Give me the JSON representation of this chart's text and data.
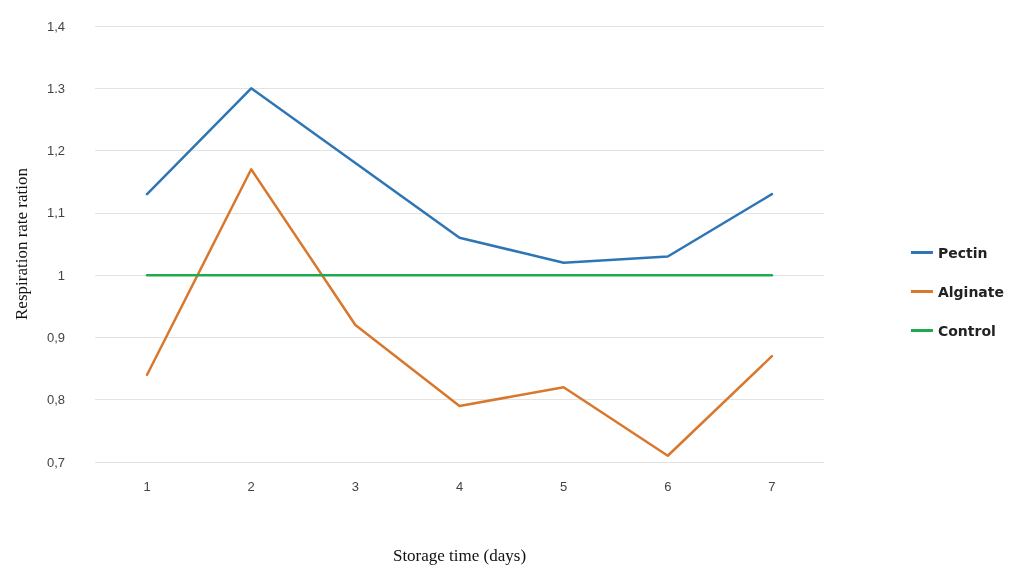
{
  "chart_data": {
    "type": "line",
    "xlabel": "Storage time (days)",
    "ylabel": "Respiration rate ration",
    "categories": [
      "1",
      "2",
      "3",
      "4",
      "5",
      "6",
      "7"
    ],
    "series": [
      {
        "name": "Pectin",
        "color": "#2e75b6",
        "values": [
          1.13,
          1.3,
          1.18,
          1.06,
          1.02,
          1.03,
          1.13
        ]
      },
      {
        "name": "Alginate",
        "color": "#d9782d",
        "values": [
          0.84,
          1.17,
          0.92,
          0.79,
          0.82,
          0.71,
          0.87
        ]
      },
      {
        "name": "Control",
        "color": "#1faa4f",
        "values": [
          1,
          1,
          1,
          1,
          1,
          1,
          1
        ]
      }
    ],
    "ylim": [
      0.7,
      1.4
    ],
    "yticks": [
      {
        "value": 0.7,
        "label": "0,7"
      },
      {
        "value": 0.8,
        "label": "0,8"
      },
      {
        "value": 0.9,
        "label": "0,9"
      },
      1,
      {
        "value": 1.1,
        "label": "1,1"
      },
      {
        "value": 1.2,
        "label": "1,2"
      },
      {
        "value": 1.3,
        "label": "1.3"
      },
      {
        "value": 1.4,
        "label": "1,4"
      }
    ],
    "grid": "y",
    "legend": "right",
    "marker": "none",
    "line_style": "solid"
  }
}
